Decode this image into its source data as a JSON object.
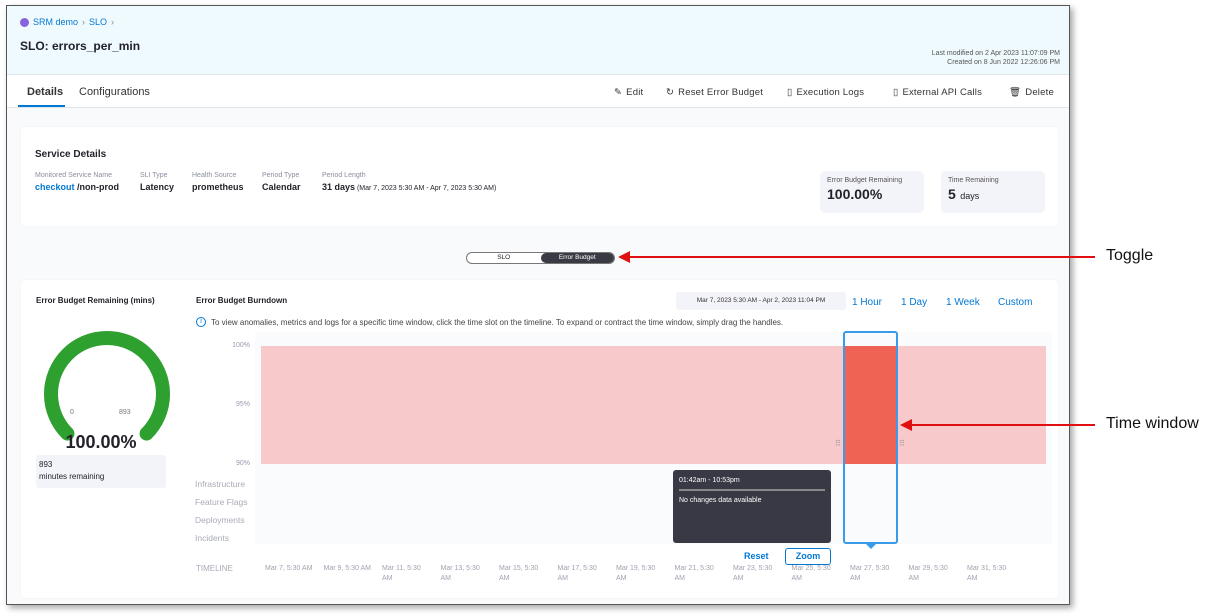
{
  "breadcrumb": [
    "SRM demo",
    "SLO"
  ],
  "title": "SLO: errors_per_min",
  "meta": {
    "last_modified": "Last modified on 2 Apr 2023 11:07:09 PM",
    "created": "Created on 8 Jun 2022 12:26:06 PM"
  },
  "tabs": [
    {
      "label": "Details",
      "active": true
    },
    {
      "label": "Configurations",
      "active": false
    }
  ],
  "actions": [
    {
      "label": "Edit",
      "icon": "pencil-icon"
    },
    {
      "label": "Reset Error Budget",
      "icon": "reset-icon"
    },
    {
      "label": "Execution Logs",
      "icon": "document-icon"
    },
    {
      "label": "External API Calls",
      "icon": "api-document-icon"
    },
    {
      "label": "Delete",
      "icon": "trash-icon"
    }
  ],
  "service": {
    "heading": "Service Details",
    "fields": [
      {
        "label": "Monitored Service Name",
        "value": "checkout",
        "suffix": " /non-prod"
      },
      {
        "label": "SLI Type",
        "value": "Latency"
      },
      {
        "label": "Health Source",
        "value": "prometheus"
      },
      {
        "label": "Period Type",
        "value": "Calendar"
      },
      {
        "label": "Period Length",
        "value": "31 days",
        "suffix": " (Mar 7, 2023 5:30 AM - Apr 7, 2023 5:30 AM)"
      }
    ],
    "error_budget_label": "Error Budget Remaining",
    "error_budget_value": "100.00%",
    "time_label": "Time Remaining",
    "time_value": "5",
    "time_unit": "days"
  },
  "toggle": {
    "options": [
      "SLO",
      "Error Budget"
    ],
    "selected": "Error Budget"
  },
  "gauge": {
    "title": "Error Budget Remaining (mins)",
    "min": "0",
    "max": "893",
    "percent": "100.00%",
    "fill": 1.0,
    "remaining": "893",
    "remaining_label": "minutes remaining",
    "color": "#2ea02f"
  },
  "burndown": {
    "title": "Error Budget Burndown",
    "date_range": "Mar 7, 2023 5:30 AM - Apr 2, 2023 11:04 PM",
    "ranges": [
      "1 Hour",
      "1 Day",
      "1 Week",
      "Custom"
    ],
    "info": "To view anomalies, metrics and logs for a specific time window, click the time slot on the timeline. To expand or contract the time window, simply drag the handles.",
    "y_ticks": [
      "100%",
      "95%",
      "90%"
    ],
    "rows": [
      "Infrastructure",
      "Feature Flags",
      "Deployments",
      "Incidents"
    ],
    "timeline_label": "TIMELINE",
    "timeline": [
      "Mar 7, 5:30 AM",
      "Mar 9, 5:30 AM",
      "Mar 11, 5:30 AM",
      "Mar 13, 5:30 AM",
      "Mar 15, 5:30 AM",
      "Mar 17, 5:30 AM",
      "Mar 19, 5:30 AM",
      "Mar 21, 5:30 AM",
      "Mar 23, 5:30 AM",
      "Mar 25, 5:30 AM",
      "Mar 27, 5:30 AM",
      "Mar 29, 5:30 AM",
      "Mar 31, 5:30 AM"
    ],
    "tooltip": {
      "time": "01:42am - 10:53pm",
      "text": "No changes data available"
    },
    "reset": "Reset",
    "zoom": "Zoom",
    "area_color": "#f7c9ca",
    "window_color": "#ef6354"
  },
  "annotations": {
    "toggle": "Toggle",
    "time_window": "Time window"
  }
}
